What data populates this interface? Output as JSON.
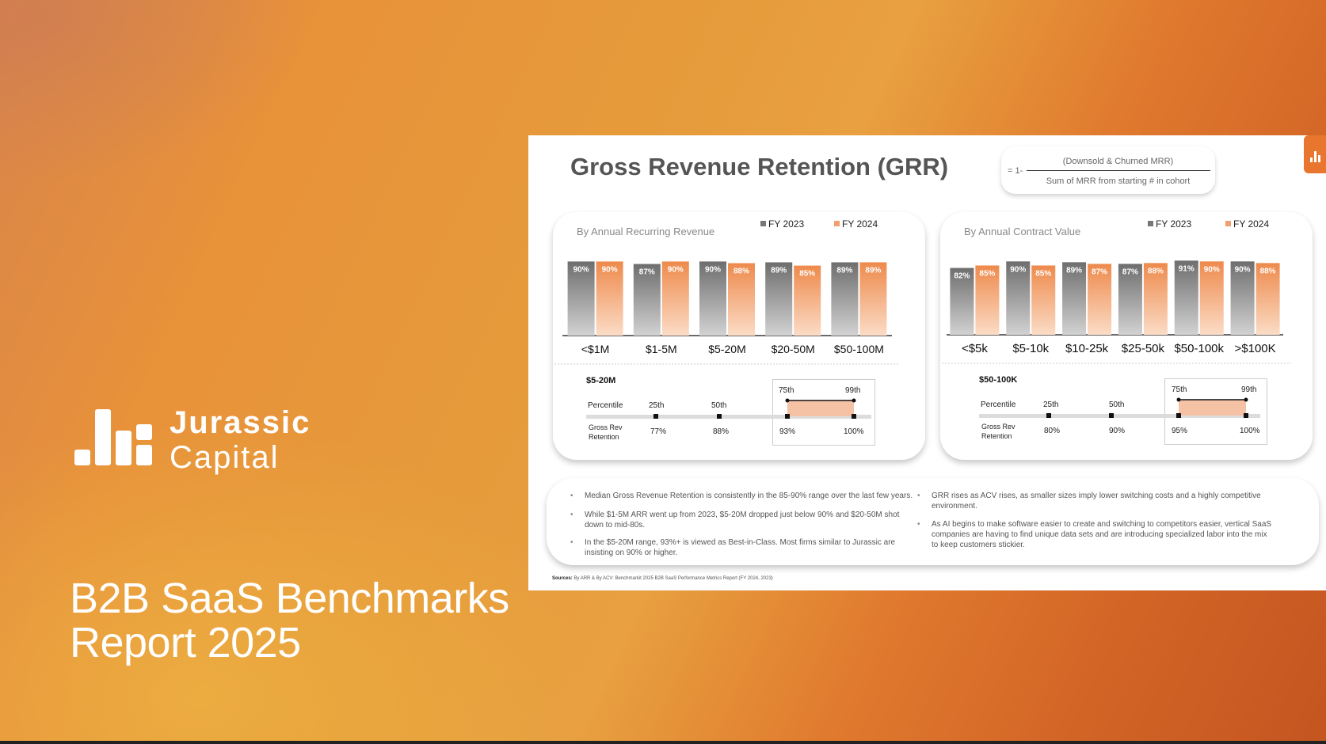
{
  "brand": {
    "line1": "Jurassic",
    "line2": "Capital"
  },
  "report_title": {
    "line1": "B2B SaaS Benchmarks",
    "line2": "Report 2025"
  },
  "colors": {
    "fy2023": "#8a8a8a",
    "fy2024": "#f0a070",
    "accent": "#e8762e"
  },
  "slide": {
    "title": "Gross Revenue Retention (GRR)",
    "formula": {
      "prefix": "= 1-",
      "numerator": "(Downsold & Churned MRR)",
      "denominator": "Sum of MRR from starting # in cohort"
    },
    "notes_left": [
      "Median Gross Revenue Retention is consistently in the 85-90% range over the last few years.",
      "While $1-5M ARR went up from 2023, $5-20M dropped just below 90% and $20-50M shot down to mid-80s.",
      "In the $5-20M range, 93%+ is viewed as Best-in-Class. Most firms similar to Jurassic are insisting on 90% or higher."
    ],
    "notes_right": [
      "GRR rises as ACV rises, as smaller sizes imply lower switching costs and a highly competitive environment.",
      "As AI begins to make software easier to create and switching to competitors easier, vertical SaaS companies are having to find unique data sets and are introducing specialized labor into the mix to keep customers stickier."
    ],
    "sources_label": "Sources:",
    "sources_text": "By ARR & By ACV: Benchmarkit 2025 B2B SaaS Performance Metrics Report (FY 2024, 2023)"
  },
  "percentiles": [
    {
      "title": "$5-20M",
      "row1_label": "Percentile",
      "row2_label_1": "Gross Rev",
      "row2_label_2": "Retention",
      "p": [
        "25th",
        "50th",
        "75th",
        "99th"
      ],
      "v": [
        "77%",
        "88%",
        "93%",
        "100%"
      ]
    },
    {
      "title": "$50-100K",
      "row1_label": "Percentile",
      "row2_label_1": "Gross Rev",
      "row2_label_2": "Retention",
      "p": [
        "25th",
        "50th",
        "75th",
        "99th"
      ],
      "v": [
        "80%",
        "90%",
        "95%",
        "100%"
      ]
    }
  ],
  "chart_data": [
    {
      "type": "bar",
      "title": "By Annual Recurring Revenue",
      "categories": [
        "<$1M",
        "$1-5M",
        "$5-20M",
        "$20-50M",
        "$50-100M"
      ],
      "series": [
        {
          "name": "FY 2023",
          "values": [
            90,
            87,
            90,
            89,
            89
          ]
        },
        {
          "name": "FY 2024",
          "values": [
            90,
            90,
            88,
            85,
            89
          ]
        }
      ],
      "ylim": [
        0,
        100
      ],
      "legend": "top-right",
      "grid": false
    },
    {
      "type": "bar",
      "title": "By Annual Contract Value",
      "categories": [
        "<$5k",
        "$5-10k",
        "$10-25k",
        "$25-50k",
        "$50-100k",
        ">$100K"
      ],
      "series": [
        {
          "name": "FY 2023",
          "values": [
            82,
            90,
            89,
            87,
            91,
            90
          ]
        },
        {
          "name": "FY 2024",
          "values": [
            85,
            85,
            87,
            88,
            90,
            88
          ]
        }
      ],
      "ylim": [
        0,
        100
      ],
      "legend": "top-right",
      "grid": false
    }
  ]
}
